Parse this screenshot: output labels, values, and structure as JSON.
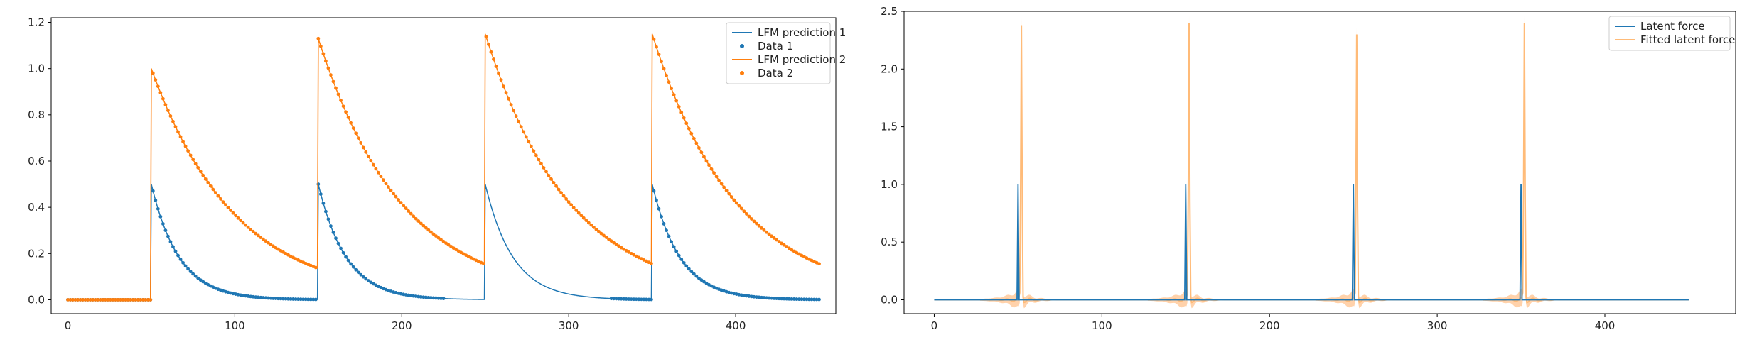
{
  "colors": {
    "blue": "#1f77b4",
    "orange": "#ff7f0e",
    "orange_light": "#ffbb78"
  },
  "chart_data": [
    {
      "type": "line",
      "xlim": [
        -10,
        460
      ],
      "ylim": [
        -0.06,
        1.22
      ],
      "xticks": [
        0,
        100,
        200,
        300,
        400
      ],
      "yticks": [
        0.0,
        0.2,
        0.4,
        0.6,
        0.8,
        1.0,
        1.2
      ],
      "xtick_labels": [
        "0",
        "100",
        "200",
        "300",
        "400"
      ],
      "ytick_labels": [
        "0.0",
        "0.2",
        "0.4",
        "0.6",
        "0.8",
        "1.0",
        "1.2"
      ],
      "legend_position": "top-right",
      "grid": false,
      "series": [
        {
          "name": "LFM prediction 1",
          "kind": "line",
          "color": "#1f77b4",
          "x_range": [
            0,
            450
          ],
          "pulse_starts": [
            50,
            150,
            250,
            350
          ],
          "peaks": [
            0.5,
            0.5,
            0.5,
            0.5
          ],
          "decay_rate": 0.06
        },
        {
          "name": "Data 1",
          "kind": "points",
          "color": "#1f77b4",
          "x_range": [
            0,
            450
          ],
          "gaps": [
            [
              225,
              325
            ]
          ],
          "note_free": true
        },
        {
          "name": "LFM prediction 2",
          "kind": "line",
          "color": "#ff7f0e",
          "x_range": [
            0,
            450
          ],
          "pulse_starts": [
            50,
            150,
            250,
            350
          ],
          "peaks": [
            1.0,
            1.13,
            1.15,
            1.15
          ],
          "decay_rate": 0.02
        },
        {
          "name": "Data 2",
          "kind": "points",
          "color": "#ff7f0e",
          "x_range": [
            0,
            450
          ],
          "gaps": []
        }
      ]
    },
    {
      "type": "line",
      "xlim": [
        -18,
        478
      ],
      "ylim": [
        -0.12,
        2.5
      ],
      "xticks": [
        0,
        100,
        200,
        300,
        400
      ],
      "yticks": [
        0.0,
        0.5,
        1.0,
        1.5,
        2.0,
        2.5
      ],
      "xtick_labels": [
        "0",
        "100",
        "200",
        "300",
        "400"
      ],
      "ytick_labels": [
        "0.0",
        "0.5",
        "1.0",
        "1.5",
        "2.0",
        "2.5"
      ],
      "legend_position": "top-right",
      "grid": false,
      "series": [
        {
          "name": "Latent force",
          "kind": "line",
          "color": "#1f77b4",
          "x_range": [
            0,
            450
          ],
          "spikes_x": [
            50,
            150,
            250,
            350
          ],
          "spike_height": 1.0
        },
        {
          "name": "Fitted latent force",
          "kind": "line",
          "color": "#ff7f0e",
          "x_range": [
            0,
            450
          ],
          "spikes_x": [
            52,
            152,
            252,
            352
          ],
          "spike_heights": [
            2.38,
            2.4,
            2.3,
            2.4
          ]
        }
      ]
    }
  ]
}
